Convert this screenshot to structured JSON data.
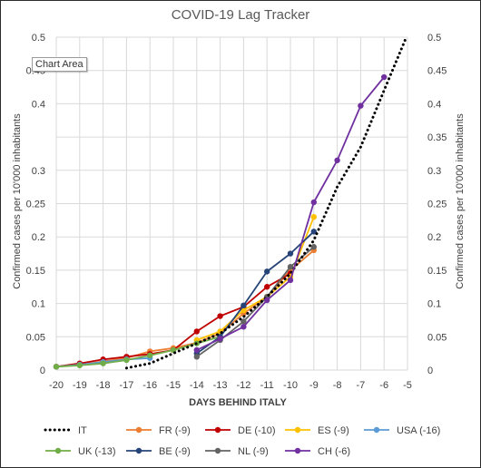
{
  "chart_data": {
    "type": "line",
    "title": "COVID-19 Lag Tracker",
    "xlabel": "DAYS BEHIND ITALY",
    "ylabel": "Confirmed  cases per 10'000 inhabitants",
    "y2label": "Confirmed cases per 10'000 inhabitants",
    "xlim": [
      -20,
      -5
    ],
    "ylim": [
      0,
      0.5
    ],
    "x_ticks": [
      "-20",
      "-19",
      "-18",
      "-17",
      "-16",
      "-15",
      "-14",
      "-13",
      "-12",
      "-11",
      "-10",
      "-9",
      "-8",
      "-7",
      "-6",
      "-5"
    ],
    "y_ticks": [
      "0",
      "0.05",
      "0.1",
      "0.15",
      "0.2",
      "0.25",
      "0.3",
      "0.35",
      "0.4",
      "0.45",
      "0.5"
    ],
    "y_ticks_left": [
      "0",
      "0.05",
      "0.1",
      "0.15",
      "0.2",
      "0.25",
      "0.3",
      "",
      "0.4",
      "0.45",
      "0.5"
    ],
    "grid": true,
    "legend_position": "bottom",
    "tooltip": "Chart Area",
    "series": [
      {
        "name": "IT",
        "color": "#000000",
        "dotted": true,
        "markers": false,
        "x": [
          -17,
          -16,
          -15,
          -14,
          -13,
          -12,
          -11,
          -10,
          -9,
          -8,
          -7,
          -6,
          -5.05
        ],
        "y": [
          0.003,
          0.01,
          0.025,
          0.04,
          0.055,
          0.08,
          0.11,
          0.145,
          0.195,
          0.275,
          0.335,
          0.42,
          0.5
        ]
      },
      {
        "name": "FR (-9)",
        "color": "#ED7D31",
        "dotted": false,
        "markers": true,
        "x": [
          -20,
          -19,
          -18,
          -17,
          -16,
          -15,
          -14,
          -13,
          -12,
          -11,
          -10,
          -9
        ],
        "y": [
          0.005,
          0.008,
          0.013,
          0.018,
          0.028,
          0.033,
          0.041,
          0.055,
          0.085,
          0.11,
          0.15,
          0.18
        ]
      },
      {
        "name": "DE (-10)",
        "color": "#C00000",
        "dotted": false,
        "markers": true,
        "x": [
          -20,
          -19,
          -18,
          -17,
          -16,
          -15,
          -14,
          -13,
          -12,
          -11,
          -10
        ],
        "y": [
          0.005,
          0.01,
          0.016,
          0.02,
          0.024,
          0.03,
          0.058,
          0.081,
          0.095,
          0.125,
          0.145
        ]
      },
      {
        "name": "ES (-9)",
        "color": "#FFC000",
        "dotted": false,
        "markers": true,
        "x": [
          -14,
          -13,
          -12,
          -11,
          -10,
          -9
        ],
        "y": [
          0.045,
          0.058,
          0.09,
          0.11,
          0.14,
          0.23
        ]
      },
      {
        "name": "USA (-16)",
        "color": "#5B9BD5",
        "dotted": false,
        "markers": true,
        "x": [
          -20,
          -19,
          -18,
          -17,
          -16
        ],
        "y": [
          0.005,
          0.008,
          0.012,
          0.016,
          0.018
        ]
      },
      {
        "name": "UK (-13)",
        "color": "#70AD47",
        "dotted": false,
        "markers": true,
        "x": [
          -20,
          -19,
          -18,
          -17,
          -16,
          -15,
          -14,
          -13
        ],
        "y": [
          0.005,
          0.007,
          0.01,
          0.015,
          0.022,
          0.03,
          0.04,
          0.05
        ]
      },
      {
        "name": "BE (-9)",
        "color": "#264478",
        "dotted": false,
        "markers": true,
        "x": [
          -14,
          -13,
          -12,
          -11,
          -10,
          -9
        ],
        "y": [
          0.025,
          0.05,
          0.097,
          0.148,
          0.175,
          0.208
        ]
      },
      {
        "name": "NL (-9)",
        "color": "#636363",
        "dotted": false,
        "markers": true,
        "x": [
          -14,
          -13,
          -12,
          -11,
          -10,
          -9
        ],
        "y": [
          0.02,
          0.045,
          0.073,
          0.11,
          0.155,
          0.185
        ]
      },
      {
        "name": "CH (-6)",
        "color": "#7030A0",
        "dotted": false,
        "markers": true,
        "x": [
          -14,
          -13,
          -12,
          -11,
          -10,
          -9,
          -8,
          -7,
          -6
        ],
        "y": [
          0.03,
          0.047,
          0.065,
          0.105,
          0.135,
          0.252,
          0.315,
          0.397,
          0.44
        ]
      }
    ]
  }
}
